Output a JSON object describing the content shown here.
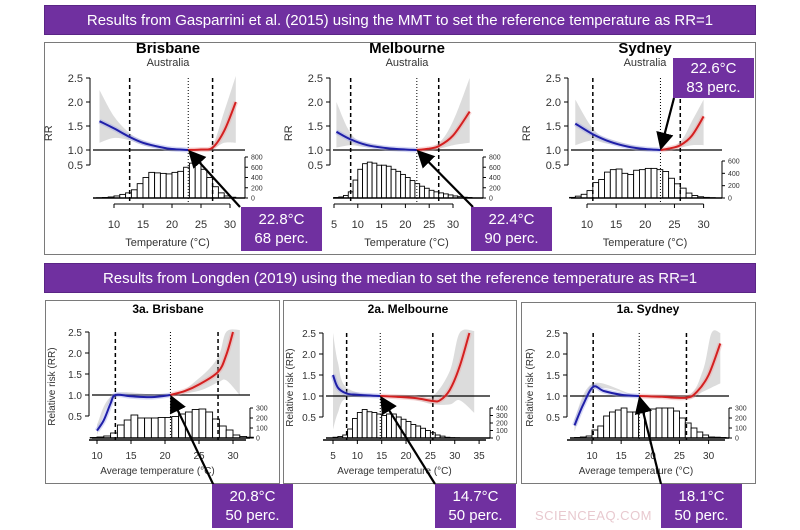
{
  "banners": {
    "top": "Results from Gasparrini et al. (2015) using the MMT to set the reference temperature as RR=1",
    "bottom": "Results from Longden (2019) using the median to set the reference temperature as RR=1"
  },
  "colors": {
    "banner": "#7030a0",
    "cold_curve": "#1f1fa8",
    "heat_curve": "#d42020",
    "ci_band": "#dcdcdc"
  },
  "watermark": "SCIENCEAQ.COM",
  "chart_data": [
    {
      "type": "line",
      "title": "Brisbane",
      "subtitle": "Australia",
      "xlabel": "Temperature (°C)",
      "ylabel": "RR",
      "x_ticks": [
        10,
        15,
        20,
        25,
        30
      ],
      "y_ticks": [
        0.5,
        1.0,
        1.5,
        2.0,
        2.5
      ],
      "y_tick_labels": [
        "0.5",
        "1.0",
        "1.5",
        "2.0",
        "2.5"
      ],
      "reference_temperature": 22.8,
      "dashed_lines": [
        12.7,
        27.0
      ],
      "rr_curve": [
        [
          7.5,
          1.6
        ],
        [
          10,
          1.45
        ],
        [
          12.7,
          1.27
        ],
        [
          15,
          1.15
        ],
        [
          18,
          1.06
        ],
        [
          20,
          1.02
        ],
        [
          22.8,
          1.0
        ],
        [
          25,
          1.01
        ],
        [
          27,
          1.05
        ],
        [
          29,
          1.4
        ],
        [
          31,
          2.0
        ]
      ],
      "ci_upper": [
        [
          7.5,
          2.25
        ],
        [
          10,
          1.7
        ],
        [
          12.7,
          1.35
        ],
        [
          15,
          1.2
        ],
        [
          18,
          1.08
        ],
        [
          22.8,
          1.0
        ],
        [
          25,
          1.03
        ],
        [
          27,
          1.1
        ],
        [
          29,
          1.8
        ],
        [
          31,
          2.6
        ]
      ],
      "ci_lower": [
        [
          7.5,
          1.15
        ],
        [
          10,
          1.25
        ],
        [
          12.7,
          1.2
        ],
        [
          15,
          1.1
        ],
        [
          18,
          1.03
        ],
        [
          22.8,
          1.0
        ],
        [
          25,
          1.0
        ],
        [
          27,
          1.02
        ],
        [
          29,
          1.15
        ],
        [
          31,
          1.15
        ]
      ],
      "histogram": {
        "bin_start": 7,
        "bin_width": 1,
        "counts": [
          5,
          10,
          20,
          40,
          70,
          100,
          160,
          280,
          400,
          500,
          490,
          480,
          470,
          500,
          520,
          600,
          680,
          700,
          560,
          400,
          220,
          100,
          40,
          15
        ],
        "y_ticks": [
          0,
          200,
          400,
          600,
          800
        ]
      },
      "callout": {
        "temp": "22.8°C",
        "percentile": "68 perc."
      }
    },
    {
      "type": "line",
      "title": "Melbourne",
      "subtitle": "Australia",
      "xlabel": "Temperature (°C)",
      "ylabel": "RR",
      "x_ticks": [
        5,
        10,
        15,
        20,
        25,
        30
      ],
      "y_ticks": [
        0.5,
        1.0,
        1.5,
        2.0,
        2.5
      ],
      "y_tick_labels": [
        "0.5",
        "1.0",
        "1.5",
        "2.0",
        "2.5"
      ],
      "reference_temperature": 22.4,
      "dashed_lines": [
        8.5,
        27.0
      ],
      "rr_curve": [
        [
          5.5,
          1.38
        ],
        [
          8.5,
          1.22
        ],
        [
          12,
          1.1
        ],
        [
          16,
          1.04
        ],
        [
          20,
          1.01
        ],
        [
          22.4,
          1.0
        ],
        [
          25,
          1.03
        ],
        [
          27,
          1.08
        ],
        [
          30,
          1.3
        ],
        [
          33.5,
          1.8
        ]
      ],
      "ci_upper": [
        [
          5.5,
          2.0
        ],
        [
          8.5,
          1.35
        ],
        [
          12,
          1.15
        ],
        [
          22.4,
          1.0
        ],
        [
          27,
          1.15
        ],
        [
          30,
          1.6
        ],
        [
          33.5,
          2.5
        ]
      ],
      "ci_lower": [
        [
          5.5,
          1.05
        ],
        [
          8.5,
          1.1
        ],
        [
          12,
          1.06
        ],
        [
          22.4,
          1.0
        ],
        [
          27,
          1.03
        ],
        [
          30,
          1.1
        ],
        [
          33.5,
          1.15
        ]
      ],
      "histogram": {
        "bin_start": 5,
        "bin_width": 1,
        "counts": [
          10,
          20,
          50,
          120,
          350,
          560,
          670,
          700,
          680,
          640,
          640,
          620,
          560,
          520,
          460,
          400,
          340,
          280,
          230,
          190,
          150,
          120,
          100,
          80,
          60,
          40,
          25,
          15,
          10
        ],
        "y_ticks": [
          0,
          200,
          400,
          600,
          800
        ]
      },
      "callout": {
        "temp": "22.4°C",
        "percentile": "90 perc."
      }
    },
    {
      "type": "line",
      "title": "Sydney",
      "subtitle": "Australia",
      "xlabel": "Temperature (°C)",
      "ylabel": "RR",
      "x_ticks": [
        10,
        15,
        20,
        25,
        30
      ],
      "y_ticks": [
        0.5,
        1.0,
        1.5,
        2.0,
        2.5
      ],
      "y_tick_labels": [
        "0.5",
        "1.0",
        "1.5",
        "2.0",
        "2.5"
      ],
      "reference_temperature": 22.6,
      "dashed_lines": [
        11.0,
        26.0
      ],
      "rr_curve": [
        [
          8,
          1.55
        ],
        [
          11,
          1.33
        ],
        [
          14,
          1.17
        ],
        [
          17,
          1.07
        ],
        [
          20,
          1.02
        ],
        [
          22.6,
          1.0
        ],
        [
          24,
          1.03
        ],
        [
          26,
          1.1
        ],
        [
          28,
          1.3
        ],
        [
          30,
          1.7
        ]
      ],
      "ci_upper": [
        [
          8,
          2.05
        ],
        [
          11,
          1.45
        ],
        [
          14,
          1.22
        ],
        [
          22.6,
          1.0
        ],
        [
          26,
          1.18
        ],
        [
          28,
          1.6
        ],
        [
          30,
          2.05
        ]
      ],
      "ci_lower": [
        [
          8,
          1.1
        ],
        [
          11,
          1.2
        ],
        [
          14,
          1.12
        ],
        [
          22.6,
          1.0
        ],
        [
          26,
          1.05
        ],
        [
          28,
          1.1
        ],
        [
          30,
          1.1
        ]
      ],
      "histogram": {
        "bin_start": 7,
        "bin_width": 1,
        "counts": [
          10,
          30,
          60,
          120,
          250,
          300,
          420,
          460,
          470,
          400,
          380,
          450,
          460,
          480,
          480,
          460,
          430,
          320,
          230,
          160,
          80,
          40,
          20,
          10,
          5
        ],
        "y_ticks": [
          0,
          200,
          400,
          600
        ]
      },
      "callout": {
        "temp": "22.6°C",
        "percentile": "83 perc."
      }
    },
    {
      "type": "line",
      "title": "3a. Brisbane",
      "subtitle": "",
      "xlabel": "Average temperature (°C)",
      "ylabel": "Relative risk (RR)",
      "x_ticks": [
        10,
        15,
        20,
        25,
        30
      ],
      "y_ticks": [
        0.5,
        1.0,
        1.5,
        2.0,
        2.5
      ],
      "y_tick_labels": [
        "0.5",
        "1.0",
        "1.5",
        "2.0",
        "2.5"
      ],
      "reference_temperature": 20.8,
      "dashed_lines": [
        12.7,
        27.8
      ],
      "rr_curve": [
        [
          10,
          0.15
        ],
        [
          11,
          0.4
        ],
        [
          12,
          0.8
        ],
        [
          12.7,
          1.0
        ],
        [
          15,
          0.97
        ],
        [
          18,
          0.95
        ],
        [
          20.8,
          1.0
        ],
        [
          23,
          1.1
        ],
        [
          25,
          1.25
        ],
        [
          27.8,
          1.55
        ],
        [
          29,
          1.95
        ],
        [
          30,
          2.5
        ]
      ],
      "ci_upper": [
        [
          10,
          0.3
        ],
        [
          12.7,
          1.03
        ],
        [
          20.8,
          1.0
        ],
        [
          25,
          1.4
        ],
        [
          27.8,
          1.9
        ],
        [
          29,
          2.5
        ],
        [
          31,
          2.6
        ]
      ],
      "ci_lower": [
        [
          10,
          0.05
        ],
        [
          12.7,
          0.95
        ],
        [
          20.8,
          1.0
        ],
        [
          25,
          1.1
        ],
        [
          27.8,
          1.3
        ],
        [
          29,
          1.35
        ],
        [
          31,
          1.0
        ]
      ],
      "histogram": {
        "bin_start": 9,
        "bin_width": 1,
        "counts": [
          5,
          10,
          20,
          50,
          130,
          180,
          230,
          200,
          200,
          200,
          205,
          205,
          215,
          240,
          260,
          285,
          290,
          260,
          190,
          120,
          80,
          30,
          15,
          8
        ],
        "y_ticks": [
          0,
          100,
          200,
          300
        ]
      },
      "callout": {
        "temp": "20.8°C",
        "percentile": "50 perc."
      }
    },
    {
      "type": "line",
      "title": "2a. Melbourne",
      "subtitle": "",
      "xlabel": "Average temperature (°C)",
      "ylabel": "Relative risk (RR)",
      "x_ticks": [
        5,
        10,
        15,
        20,
        25,
        30,
        35
      ],
      "y_ticks": [
        0.5,
        1.0,
        1.5,
        2.0,
        2.5
      ],
      "y_tick_labels": [
        "0.5",
        "1.0",
        "1.5",
        "2.0",
        "2.5"
      ],
      "reference_temperature": 14.7,
      "dashed_lines": [
        7.8,
        25.5
      ],
      "rr_curve": [
        [
          5,
          1.5
        ],
        [
          6,
          1.2
        ],
        [
          7.8,
          1.06
        ],
        [
          10,
          1.03
        ],
        [
          14.7,
          1.0
        ],
        [
          18,
          0.98
        ],
        [
          22,
          0.95
        ],
        [
          25.5,
          0.88
        ],
        [
          27,
          0.9
        ],
        [
          29,
          1.15
        ],
        [
          31,
          1.7
        ],
        [
          33,
          2.5
        ]
      ],
      "ci_upper": [
        [
          5,
          2.5
        ],
        [
          6,
          1.8
        ],
        [
          7.8,
          1.2
        ],
        [
          14.7,
          1.0
        ],
        [
          22,
          1.0
        ],
        [
          25.5,
          1.0
        ],
        [
          29,
          1.6
        ],
        [
          31,
          2.5
        ],
        [
          34,
          2.6
        ]
      ],
      "ci_lower": [
        [
          5,
          0.2
        ],
        [
          6,
          0.6
        ],
        [
          7.8,
          0.95
        ],
        [
          14.7,
          1.0
        ],
        [
          22,
          0.9
        ],
        [
          25.5,
          0.8
        ],
        [
          29,
          0.8
        ],
        [
          31,
          0.9
        ],
        [
          34,
          0.6
        ]
      ],
      "histogram": {
        "bin_start": 5,
        "bin_width": 1,
        "counts": [
          10,
          20,
          40,
          120,
          260,
          340,
          380,
          350,
          340,
          320,
          300,
          320,
          320,
          280,
          250,
          220,
          180,
          160,
          130,
          100,
          70,
          40,
          25,
          10,
          5,
          3
        ],
        "y_ticks": [
          0,
          100,
          200,
          300,
          400
        ]
      },
      "callout": {
        "temp": "14.7°C",
        "percentile": "50 perc."
      }
    },
    {
      "type": "line",
      "title": "1a. Sydney",
      "subtitle": "",
      "xlabel": "Average temperature (°C)",
      "ylabel": "Relative risk (RR)",
      "x_ticks": [
        10,
        15,
        20,
        25,
        30
      ],
      "y_ticks": [
        0.5,
        1.0,
        1.5,
        2.0,
        2.5
      ],
      "y_tick_labels": [
        "0.5",
        "1.0",
        "1.5",
        "2.0",
        "2.5"
      ],
      "reference_temperature": 18.1,
      "dashed_lines": [
        10.2,
        26.2
      ],
      "rr_curve": [
        [
          7,
          0.3
        ],
        [
          8.5,
          0.8
        ],
        [
          10.2,
          1.22
        ],
        [
          12,
          1.12
        ],
        [
          15,
          1.03
        ],
        [
          18.1,
          1.0
        ],
        [
          22,
          0.98
        ],
        [
          26.2,
          0.96
        ],
        [
          28,
          1.1
        ],
        [
          30,
          1.5
        ],
        [
          32,
          2.25
        ]
      ],
      "ci_upper": [
        [
          7,
          0.45
        ],
        [
          10.2,
          1.3
        ],
        [
          18.1,
          1.0
        ],
        [
          26.2,
          1.0
        ],
        [
          29,
          1.6
        ],
        [
          30.5,
          2.5
        ],
        [
          32,
          2.5
        ]
      ],
      "ci_lower": [
        [
          7,
          0.15
        ],
        [
          10.2,
          1.15
        ],
        [
          18.1,
          1.0
        ],
        [
          26.2,
          0.92
        ],
        [
          29,
          1.1
        ],
        [
          30.5,
          1.2
        ],
        [
          32,
          1.3
        ]
      ],
      "histogram": {
        "bin_start": 7,
        "bin_width": 1,
        "counts": [
          5,
          10,
          20,
          80,
          120,
          220,
          260,
          280,
          300,
          260,
          260,
          260,
          280,
          290,
          300,
          300,
          300,
          270,
          200,
          150,
          100,
          60,
          30,
          10,
          8,
          5
        ],
        "y_ticks": [
          0,
          100,
          200,
          300
        ]
      },
      "callout": {
        "temp": "18.1°C",
        "percentile": "50 perc."
      }
    }
  ]
}
